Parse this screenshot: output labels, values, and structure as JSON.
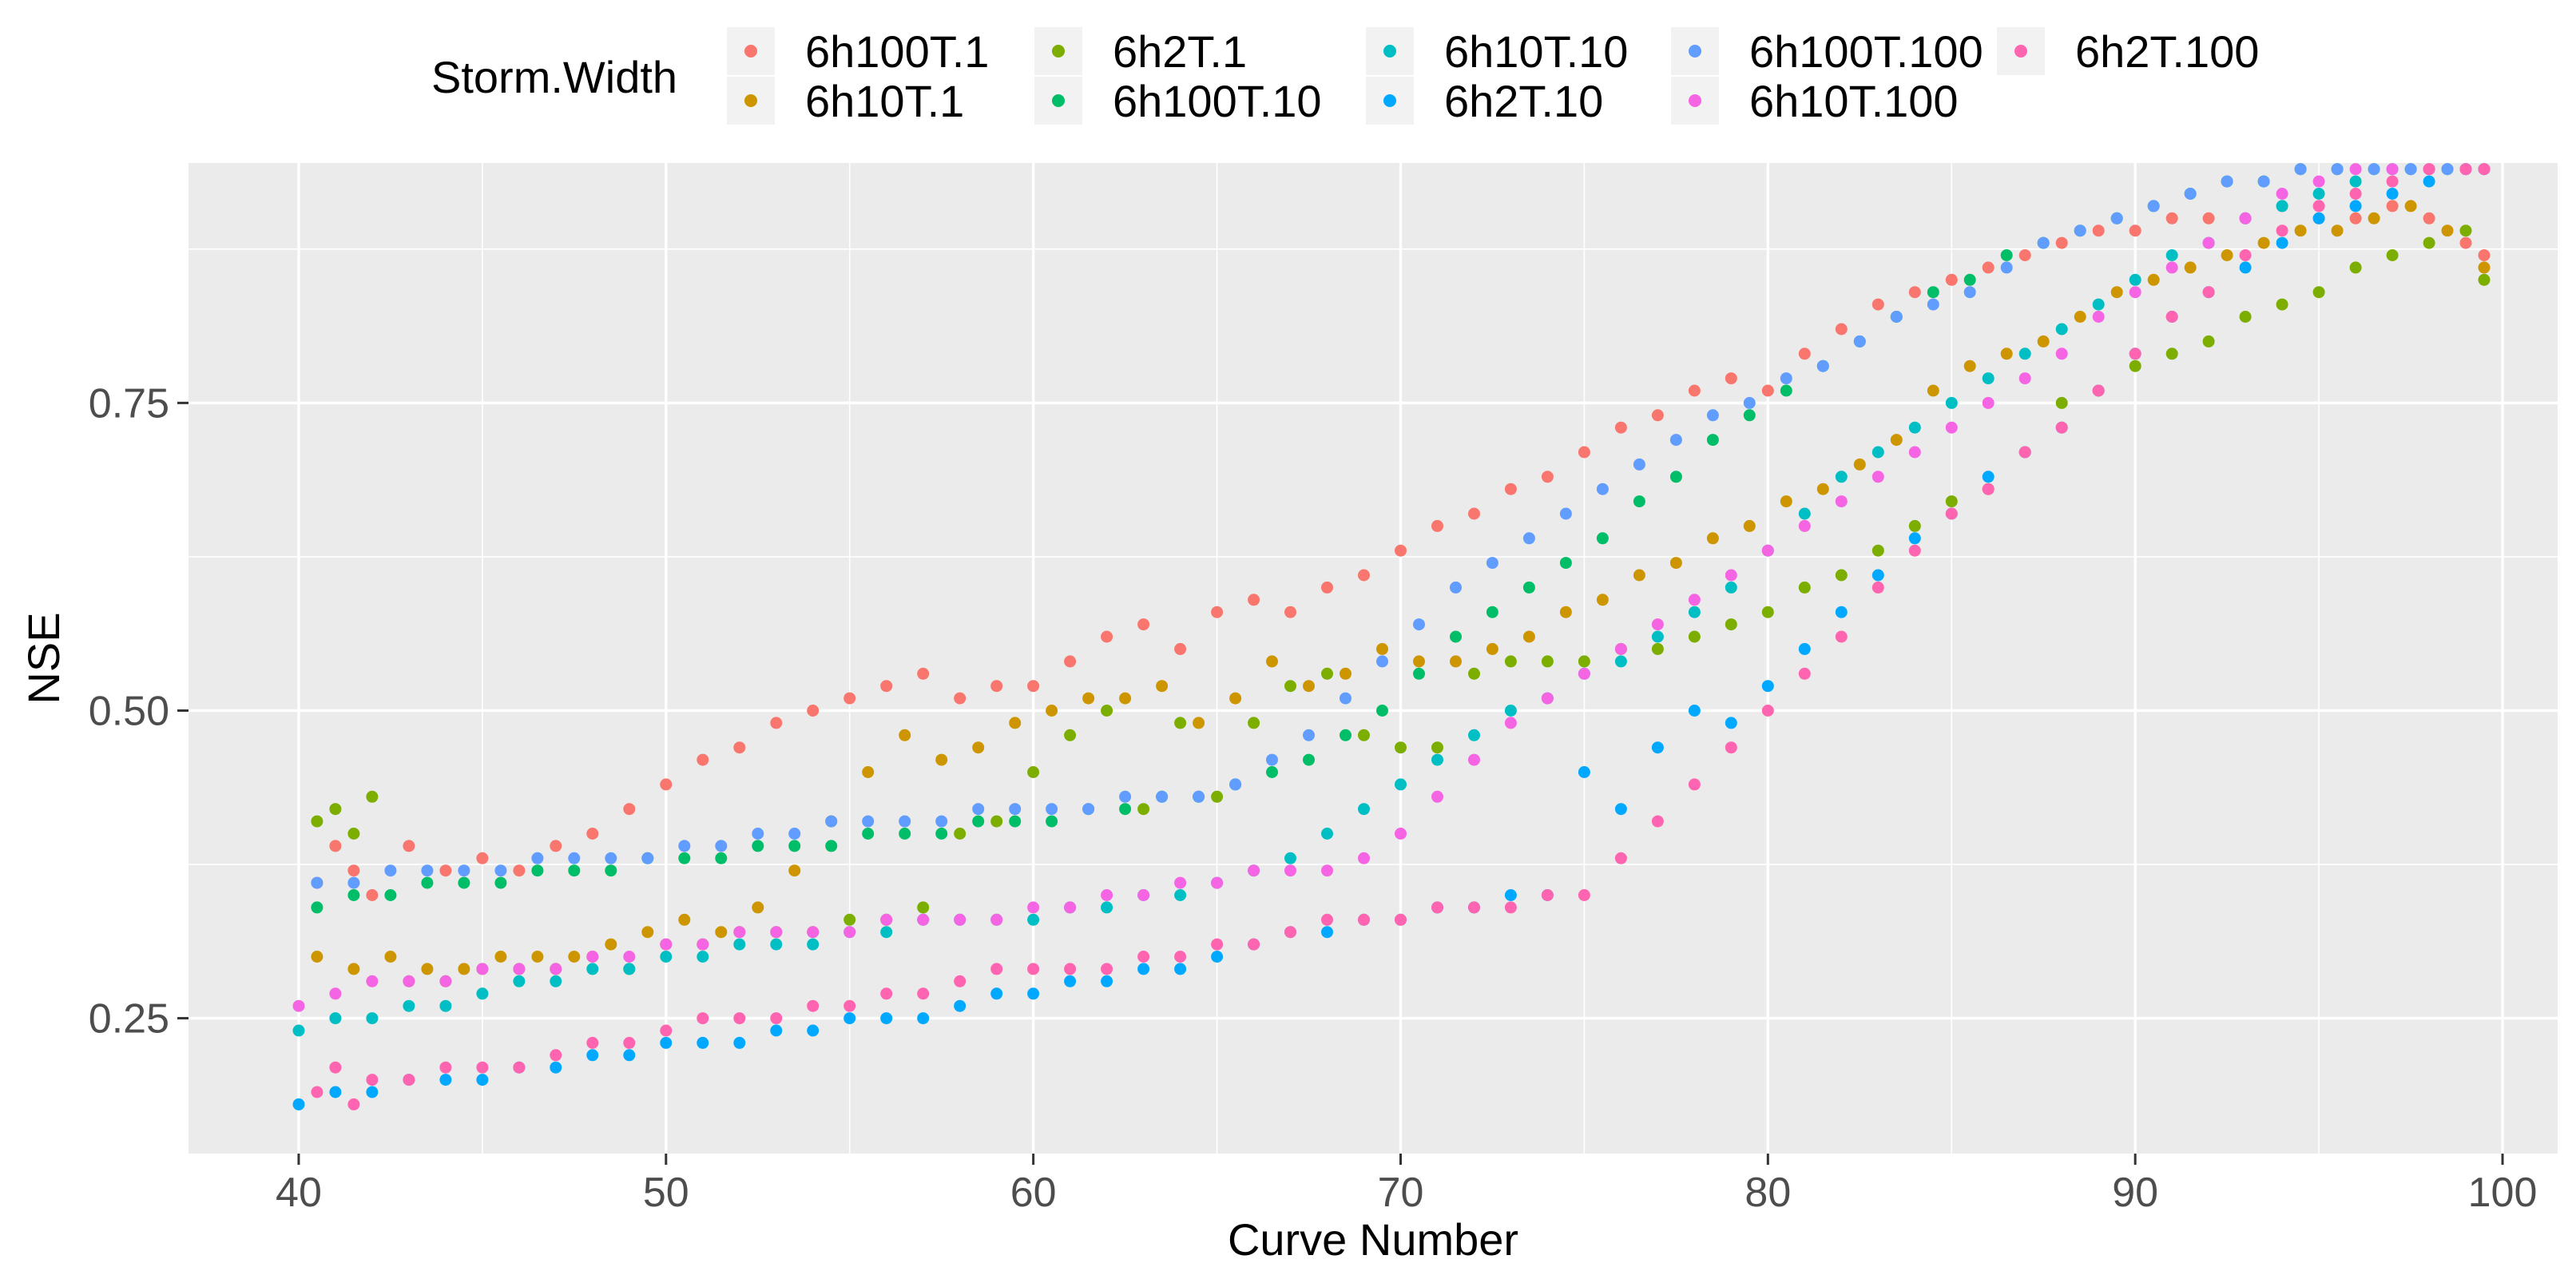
{
  "chart_data": {
    "type": "scatter",
    "title": "",
    "xlabel": "Curve Number",
    "ylabel": "NSE",
    "xlim": [
      37,
      101.5
    ],
    "ylim": [
      0.14,
      0.945
    ],
    "xticks": [
      40,
      50,
      60,
      70,
      80,
      90,
      100
    ],
    "yticks": [
      0.25,
      0.5,
      0.75
    ],
    "ytick_labels": [
      "0.25",
      "0.50",
      "0.75"
    ],
    "grid": true,
    "legend_position": "top",
    "legend_title": "Storm.Width",
    "series": [
      {
        "name": "6h100T.1",
        "color": "#F8766D",
        "x": [
          40.5,
          41,
          41.5,
          42,
          43,
          44,
          45,
          46,
          47,
          48,
          49,
          50,
          51,
          52,
          53,
          54,
          55,
          56,
          57,
          58,
          59,
          60,
          61,
          62,
          63,
          64,
          65,
          66,
          67,
          68,
          69,
          70,
          71,
          72,
          73,
          74,
          75,
          76,
          77,
          78,
          79,
          80,
          81,
          82,
          83,
          84,
          85,
          86,
          87,
          88,
          89,
          90,
          91,
          92,
          93,
          94,
          95,
          96,
          97,
          98,
          99,
          99.5
        ],
        "y": [
          0.36,
          0.39,
          0.37,
          0.35,
          0.39,
          0.37,
          0.38,
          0.37,
          0.39,
          0.4,
          0.42,
          0.44,
          0.46,
          0.47,
          0.49,
          0.5,
          0.51,
          0.52,
          0.53,
          0.51,
          0.52,
          0.52,
          0.54,
          0.56,
          0.57,
          0.55,
          0.58,
          0.59,
          0.58,
          0.6,
          0.61,
          0.63,
          0.65,
          0.66,
          0.68,
          0.69,
          0.71,
          0.73,
          0.74,
          0.76,
          0.77,
          0.76,
          0.79,
          0.81,
          0.83,
          0.84,
          0.85,
          0.86,
          0.87,
          0.88,
          0.89,
          0.89,
          0.9,
          0.9,
          0.9,
          0.91,
          0.9,
          0.9,
          0.91,
          0.9,
          0.88,
          0.87
        ]
      },
      {
        "name": "6h10T.1",
        "color": "#CD9600",
        "x": [
          40.5,
          41.5,
          42.5,
          43.5,
          44.5,
          45.5,
          46.5,
          47.5,
          48.5,
          49.5,
          50.5,
          51.5,
          52.5,
          53.5,
          54.5,
          55.5,
          56.5,
          57.5,
          58.5,
          59.5,
          60.5,
          61.5,
          62.5,
          63.5,
          64.5,
          65.5,
          66.5,
          67.5,
          68.5,
          69.5,
          70.5,
          71.5,
          72.5,
          73.5,
          74.5,
          75.5,
          76.5,
          77.5,
          78.5,
          79.5,
          80.5,
          81.5,
          82.5,
          83.5,
          84.5,
          85.5,
          86.5,
          87.5,
          88.5,
          89.5,
          90.5,
          91.5,
          92.5,
          93.5,
          94.5,
          95.5,
          96.5,
          97.5,
          98.5,
          99.5
        ],
        "y": [
          0.3,
          0.29,
          0.3,
          0.29,
          0.29,
          0.3,
          0.3,
          0.3,
          0.31,
          0.32,
          0.33,
          0.32,
          0.34,
          0.37,
          0.41,
          0.45,
          0.48,
          0.46,
          0.47,
          0.49,
          0.5,
          0.51,
          0.51,
          0.52,
          0.49,
          0.51,
          0.54,
          0.52,
          0.53,
          0.55,
          0.54,
          0.54,
          0.55,
          0.56,
          0.58,
          0.59,
          0.61,
          0.62,
          0.64,
          0.65,
          0.67,
          0.68,
          0.7,
          0.72,
          0.76,
          0.78,
          0.79,
          0.8,
          0.82,
          0.84,
          0.85,
          0.86,
          0.87,
          0.88,
          0.89,
          0.89,
          0.9,
          0.91,
          0.89,
          0.86
        ]
      },
      {
        "name": "6h2T.1",
        "color": "#7CAE00",
        "x": [
          40.5,
          41,
          41.5,
          42,
          43,
          44,
          45,
          46,
          47,
          48,
          49,
          50,
          51,
          52,
          53,
          54,
          55,
          56,
          57,
          58,
          59,
          60,
          61,
          62,
          63,
          64,
          65,
          66,
          67,
          68,
          69,
          70,
          71,
          72,
          73,
          74,
          75,
          76,
          77,
          78,
          79,
          80,
          81,
          82,
          83,
          84,
          85,
          86,
          87,
          88,
          89,
          90,
          91,
          92,
          93,
          94,
          95,
          96,
          97,
          98,
          99,
          99.5
        ],
        "y": [
          0.41,
          0.42,
          0.4,
          0.43,
          0.28,
          0.28,
          0.29,
          0.29,
          0.29,
          0.3,
          0.29,
          0.31,
          0.31,
          0.32,
          0.32,
          0.32,
          0.33,
          0.33,
          0.34,
          0.4,
          0.41,
          0.45,
          0.48,
          0.5,
          0.42,
          0.49,
          0.43,
          0.49,
          0.52,
          0.53,
          0.48,
          0.47,
          0.47,
          0.53,
          0.54,
          0.54,
          0.54,
          0.55,
          0.55,
          0.56,
          0.57,
          0.58,
          0.6,
          0.61,
          0.63,
          0.65,
          0.67,
          0.68,
          0.71,
          0.75,
          0.76,
          0.78,
          0.79,
          0.8,
          0.82,
          0.83,
          0.84,
          0.86,
          0.87,
          0.88,
          0.89,
          0.85
        ]
      },
      {
        "name": "6h100T.10",
        "color": "#00BE67",
        "x": [
          40.5,
          41.5,
          42.5,
          43.5,
          44.5,
          45.5,
          46.5,
          47.5,
          48.5,
          49.5,
          50.5,
          51.5,
          52.5,
          53.5,
          54.5,
          55.5,
          56.5,
          57.5,
          58.5,
          59.5,
          60.5,
          61.5,
          62.5,
          63.5,
          64.5,
          65.5,
          66.5,
          67.5,
          68.5,
          69.5,
          70.5,
          71.5,
          72.5,
          73.5,
          74.5,
          75.5,
          76.5,
          77.5,
          78.5,
          79.5,
          80.5,
          81.5,
          82.5,
          83.5,
          84.5,
          85.5,
          86.5,
          87.5,
          88.5,
          89.5,
          90.5,
          91.5,
          92.5,
          93.5,
          94.5,
          95.5,
          96.5,
          97.5,
          98.5,
          99.5
        ],
        "y": [
          0.34,
          0.35,
          0.35,
          0.36,
          0.36,
          0.36,
          0.37,
          0.37,
          0.37,
          0.38,
          0.38,
          0.38,
          0.39,
          0.39,
          0.39,
          0.4,
          0.4,
          0.4,
          0.41,
          0.41,
          0.41,
          0.42,
          0.42,
          0.43,
          0.43,
          0.44,
          0.45,
          0.46,
          0.48,
          0.5,
          0.53,
          0.56,
          0.58,
          0.6,
          0.62,
          0.64,
          0.67,
          0.69,
          0.72,
          0.74,
          0.76,
          0.78,
          0.8,
          0.82,
          0.84,
          0.85,
          0.87,
          0.88,
          0.89,
          0.9,
          0.91,
          0.92,
          0.93,
          0.93,
          0.94,
          0.94,
          0.94,
          0.94,
          0.94,
          0.94
        ]
      },
      {
        "name": "6h10T.10",
        "color": "#00BFC4",
        "x": [
          40,
          41,
          42,
          43,
          44,
          45,
          46,
          47,
          48,
          49,
          50,
          51,
          52,
          53,
          54,
          55,
          56,
          57,
          58,
          59,
          60,
          61,
          62,
          63,
          64,
          65,
          66,
          67,
          68,
          69,
          70,
          71,
          72,
          73,
          74,
          75,
          76,
          77,
          78,
          79,
          80,
          81,
          82,
          83,
          84,
          85,
          86,
          87,
          88,
          89,
          90,
          91,
          92,
          93,
          94,
          95,
          96,
          97,
          98,
          99
        ],
        "y": [
          0.24,
          0.25,
          0.25,
          0.26,
          0.26,
          0.27,
          0.28,
          0.28,
          0.29,
          0.29,
          0.3,
          0.3,
          0.31,
          0.31,
          0.31,
          0.32,
          0.32,
          0.33,
          0.33,
          0.33,
          0.33,
          0.34,
          0.34,
          0.35,
          0.35,
          0.36,
          0.37,
          0.38,
          0.4,
          0.42,
          0.44,
          0.46,
          0.48,
          0.5,
          0.51,
          0.53,
          0.54,
          0.56,
          0.58,
          0.6,
          0.63,
          0.66,
          0.69,
          0.71,
          0.73,
          0.75,
          0.77,
          0.79,
          0.81,
          0.83,
          0.85,
          0.87,
          0.88,
          0.9,
          0.91,
          0.92,
          0.93,
          0.94,
          0.94,
          0.94
        ]
      },
      {
        "name": "6h2T.10",
        "color": "#00A9FF",
        "x": [
          40,
          41,
          42,
          43,
          44,
          45,
          46,
          47,
          48,
          49,
          50,
          51,
          52,
          53,
          54,
          55,
          56,
          57,
          58,
          59,
          60,
          61,
          62,
          63,
          64,
          65,
          66,
          67,
          68,
          69,
          70,
          71,
          72,
          73,
          74,
          75,
          76,
          77,
          78,
          79,
          80,
          81,
          82,
          83,
          84,
          85,
          86,
          87,
          88,
          89,
          90,
          91,
          92,
          93,
          94,
          95,
          96,
          97,
          98,
          99
        ],
        "y": [
          0.18,
          0.19,
          0.19,
          0.2,
          0.2,
          0.2,
          0.21,
          0.21,
          0.22,
          0.22,
          0.23,
          0.23,
          0.23,
          0.24,
          0.24,
          0.25,
          0.25,
          0.25,
          0.26,
          0.27,
          0.27,
          0.28,
          0.28,
          0.29,
          0.29,
          0.3,
          0.31,
          0.32,
          0.32,
          0.33,
          0.33,
          0.34,
          0.34,
          0.35,
          0.35,
          0.45,
          0.42,
          0.47,
          0.5,
          0.49,
          0.52,
          0.55,
          0.58,
          0.61,
          0.64,
          0.66,
          0.69,
          0.71,
          0.73,
          0.76,
          0.79,
          0.82,
          0.84,
          0.86,
          0.88,
          0.9,
          0.91,
          0.92,
          0.93,
          0.94
        ]
      },
      {
        "name": "6h100T.100",
        "color": "#619CFF",
        "x": [
          40.5,
          41.5,
          42.5,
          43.5,
          44.5,
          45.5,
          46.5,
          47.5,
          48.5,
          49.5,
          50.5,
          51.5,
          52.5,
          53.5,
          54.5,
          55.5,
          56.5,
          57.5,
          58.5,
          59.5,
          60.5,
          61.5,
          62.5,
          63.5,
          64.5,
          65.5,
          66.5,
          67.5,
          68.5,
          69.5,
          70.5,
          71.5,
          72.5,
          73.5,
          74.5,
          75.5,
          76.5,
          77.5,
          78.5,
          79.5,
          80.5,
          81.5,
          82.5,
          83.5,
          84.5,
          85.5,
          86.5,
          87.5,
          88.5,
          89.5,
          90.5,
          91.5,
          92.5,
          93.5,
          94.5,
          95.5,
          96.5,
          97.5,
          98.5,
          99.5
        ],
        "y": [
          0.36,
          0.36,
          0.37,
          0.37,
          0.37,
          0.37,
          0.38,
          0.38,
          0.38,
          0.38,
          0.39,
          0.39,
          0.4,
          0.4,
          0.41,
          0.41,
          0.41,
          0.41,
          0.42,
          0.42,
          0.42,
          0.42,
          0.43,
          0.43,
          0.43,
          0.44,
          0.46,
          0.48,
          0.51,
          0.54,
          0.57,
          0.6,
          0.62,
          0.64,
          0.66,
          0.68,
          0.7,
          0.72,
          0.74,
          0.75,
          0.77,
          0.78,
          0.8,
          0.82,
          0.83,
          0.84,
          0.86,
          0.88,
          0.89,
          0.9,
          0.91,
          0.92,
          0.93,
          0.93,
          0.94,
          0.94,
          0.94,
          0.94,
          0.94,
          0.94
        ]
      },
      {
        "name": "6h10T.100",
        "color": "#F564E3",
        "x": [
          40,
          41,
          42,
          43,
          44,
          45,
          46,
          47,
          48,
          49,
          50,
          51,
          52,
          53,
          54,
          55,
          56,
          57,
          58,
          59,
          60,
          61,
          62,
          63,
          64,
          65,
          66,
          67,
          68,
          69,
          70,
          71,
          72,
          73,
          74,
          75,
          76,
          77,
          78,
          79,
          80,
          81,
          82,
          83,
          84,
          85,
          86,
          87,
          88,
          89,
          90,
          91,
          92,
          93,
          94,
          95,
          96,
          97,
          98,
          99
        ],
        "y": [
          0.26,
          0.27,
          0.28,
          0.28,
          0.28,
          0.29,
          0.29,
          0.29,
          0.3,
          0.3,
          0.31,
          0.31,
          0.32,
          0.32,
          0.32,
          0.32,
          0.33,
          0.33,
          0.33,
          0.33,
          0.34,
          0.34,
          0.35,
          0.35,
          0.36,
          0.36,
          0.37,
          0.37,
          0.37,
          0.38,
          0.4,
          0.43,
          0.46,
          0.49,
          0.51,
          0.53,
          0.55,
          0.57,
          0.59,
          0.61,
          0.63,
          0.65,
          0.67,
          0.69,
          0.71,
          0.73,
          0.75,
          0.77,
          0.79,
          0.82,
          0.84,
          0.86,
          0.88,
          0.9,
          0.92,
          0.93,
          0.94,
          0.94,
          0.94,
          0.94
        ]
      },
      {
        "name": "6h2T.100",
        "color": "#FF64B0",
        "x": [
          40.5,
          41,
          41.5,
          42,
          43,
          44,
          45,
          46,
          47,
          48,
          49,
          50,
          51,
          52,
          53,
          54,
          55,
          56,
          57,
          58,
          59,
          60,
          61,
          62,
          63,
          64,
          65,
          66,
          67,
          68,
          69,
          70,
          71,
          72,
          73,
          74,
          75,
          76,
          77,
          78,
          79,
          80,
          81,
          82,
          83,
          84,
          85,
          86,
          87,
          88,
          89,
          90,
          91,
          92,
          93,
          94,
          95,
          96,
          97,
          98,
          99,
          99.5
        ],
        "y": [
          0.19,
          0.21,
          0.18,
          0.2,
          0.2,
          0.21,
          0.21,
          0.21,
          0.22,
          0.23,
          0.23,
          0.24,
          0.25,
          0.25,
          0.25,
          0.26,
          0.26,
          0.27,
          0.27,
          0.28,
          0.29,
          0.29,
          0.29,
          0.29,
          0.3,
          0.3,
          0.31,
          0.31,
          0.32,
          0.33,
          0.33,
          0.33,
          0.34,
          0.34,
          0.34,
          0.35,
          0.35,
          0.38,
          0.41,
          0.44,
          0.47,
          0.5,
          0.53,
          0.56,
          0.6,
          0.63,
          0.66,
          0.68,
          0.71,
          0.73,
          0.76,
          0.79,
          0.82,
          0.84,
          0.87,
          0.89,
          0.91,
          0.92,
          0.93,
          0.94,
          0.94,
          0.94
        ]
      }
    ]
  }
}
